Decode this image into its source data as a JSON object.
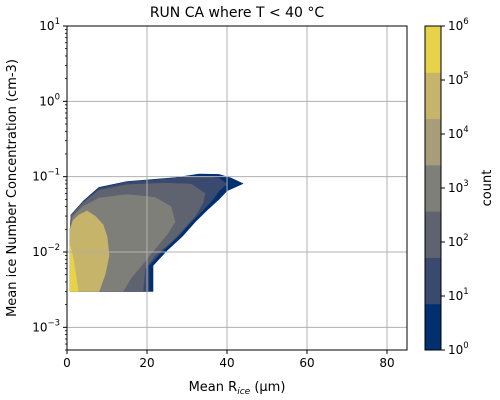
{
  "chart_data": {
    "type": "contour",
    "title": "RUN CA where T < 40 °C",
    "xlabel": {
      "prefix": "Mean R",
      "sub": "ice",
      "suffix": " (μm)"
    },
    "ylabel": "Mean ice Number Concentration (cm-3)",
    "x_scale": "linear",
    "y_scale": "log",
    "xlim": [
      0,
      85
    ],
    "ylim": [
      0.0005,
      10
    ],
    "x_ticks": [
      0,
      20,
      40,
      60,
      80
    ],
    "y_ticks": [
      {
        "value": 0.001,
        "base": "10",
        "exp": "−3"
      },
      {
        "value": 0.01,
        "base": "10",
        "exp": "−2"
      },
      {
        "value": 0.1,
        "base": "10",
        "exp": "−1"
      },
      {
        "value": 1,
        "base": "10",
        "exp": "0"
      },
      {
        "value": 10,
        "base": "10",
        "exp": "1"
      }
    ],
    "grid": true,
    "colorbar": {
      "label": "count",
      "scale": "log",
      "levels": [
        1,
        10,
        100,
        1000,
        10000,
        100000,
        1000000
      ],
      "tick_labels": [
        {
          "base": "10",
          "exp": "0"
        },
        {
          "base": "10",
          "exp": "1"
        },
        {
          "base": "10",
          "exp": "2"
        },
        {
          "base": "10",
          "exp": "3"
        },
        {
          "base": "10",
          "exp": "4"
        },
        {
          "base": "10",
          "exp": "5"
        },
        {
          "base": "10",
          "exp": "6"
        }
      ],
      "colors": [
        "#00306f",
        "#3a4a6e",
        "#5f6370",
        "#7f7f79",
        "#a79e79",
        "#c6b46a",
        "#e8d24a"
      ]
    },
    "contours": [
      {
        "level_range": [
          1,
          10
        ],
        "color": "#00306f",
        "points": [
          [
            0.8,
            0.003
          ],
          [
            21.5,
            0.003
          ],
          [
            21.5,
            0.0066
          ],
          [
            25,
            0.0105
          ],
          [
            29,
            0.0165
          ],
          [
            32,
            0.025
          ],
          [
            35,
            0.036
          ],
          [
            38,
            0.05
          ],
          [
            40,
            0.065
          ],
          [
            44,
            0.081
          ],
          [
            41,
            0.096
          ],
          [
            38,
            0.107
          ],
          [
            33,
            0.108
          ],
          [
            27,
            0.097
          ],
          [
            15,
            0.086
          ],
          [
            8,
            0.072
          ],
          [
            4,
            0.047
          ],
          [
            1,
            0.031
          ],
          [
            0.8,
            0.02
          ]
        ]
      },
      {
        "level_range": [
          10,
          100
        ],
        "color": "#3a4a6e",
        "points": [
          [
            0.8,
            0.003
          ],
          [
            20.5,
            0.003
          ],
          [
            20.5,
            0.0066
          ],
          [
            24,
            0.0105
          ],
          [
            28,
            0.0165
          ],
          [
            31,
            0.025
          ],
          [
            34,
            0.036
          ],
          [
            36.5,
            0.05
          ],
          [
            38,
            0.065
          ],
          [
            40,
            0.08
          ],
          [
            38,
            0.095
          ],
          [
            34,
            0.102
          ],
          [
            28,
            0.096
          ],
          [
            15,
            0.085
          ],
          [
            8,
            0.07
          ],
          [
            4,
            0.046
          ],
          [
            1,
            0.031
          ],
          [
            0.8,
            0.02
          ]
        ]
      },
      {
        "level_range": [
          100,
          1000
        ],
        "color": "#5f6370",
        "points": [
          [
            0.8,
            0.003
          ],
          [
            19,
            0.003
          ],
          [
            19.5,
            0.006
          ],
          [
            22,
            0.009
          ],
          [
            26,
            0.0135
          ],
          [
            29,
            0.02
          ],
          [
            32,
            0.03
          ],
          [
            34,
            0.045
          ],
          [
            34.5,
            0.06
          ],
          [
            31,
            0.08
          ],
          [
            24,
            0.082
          ],
          [
            15,
            0.078
          ],
          [
            8,
            0.066
          ],
          [
            4,
            0.045
          ],
          [
            1,
            0.03
          ],
          [
            0.8,
            0.02
          ]
        ]
      },
      {
        "level_range": [
          1000,
          10000
        ],
        "color": "#7f7f79",
        "points": [
          [
            0.8,
            0.003
          ],
          [
            14,
            0.003
          ],
          [
            16,
            0.0045
          ],
          [
            19,
            0.007
          ],
          [
            22,
            0.011
          ],
          [
            25,
            0.017
          ],
          [
            27,
            0.025
          ],
          [
            26,
            0.04
          ],
          [
            22,
            0.053
          ],
          [
            15,
            0.058
          ],
          [
            8,
            0.052
          ],
          [
            4,
            0.04
          ],
          [
            1.5,
            0.03
          ],
          [
            0.8,
            0.02
          ]
        ]
      },
      {
        "level_range": [
          10000,
          100000
        ],
        "color": "#a79e79",
        "points": [
          [
            0.8,
            0.003
          ],
          [
            8,
            0.003
          ],
          [
            9.5,
            0.005
          ],
          [
            10.5,
            0.009
          ],
          [
            10,
            0.016
          ],
          [
            9,
            0.023
          ],
          [
            7,
            0.03
          ],
          [
            5,
            0.035
          ],
          [
            3,
            0.031
          ],
          [
            1.5,
            0.026
          ],
          [
            0.8,
            0.02
          ]
        ]
      },
      {
        "level_range": [
          100000,
          1000000
        ],
        "color": "#c6b46a",
        "points": [
          [
            0.8,
            0.003
          ],
          [
            8,
            0.003
          ],
          [
            9.5,
            0.005
          ],
          [
            10.5,
            0.009
          ],
          [
            10,
            0.016
          ],
          [
            9,
            0.023
          ],
          [
            7,
            0.03
          ],
          [
            5,
            0.035
          ],
          [
            3,
            0.031
          ],
          [
            1.5,
            0.026
          ],
          [
            0.8,
            0.02
          ]
        ]
      },
      {
        "level_range": [
          100000,
          1000000
        ],
        "color": "#e8d24a",
        "points": [
          [
            0.8,
            0.003
          ],
          [
            2.8,
            0.003
          ],
          [
            2.2,
            0.005
          ],
          [
            1.6,
            0.008
          ],
          [
            1,
            0.011
          ],
          [
            0.8,
            0.012
          ]
        ]
      }
    ]
  }
}
